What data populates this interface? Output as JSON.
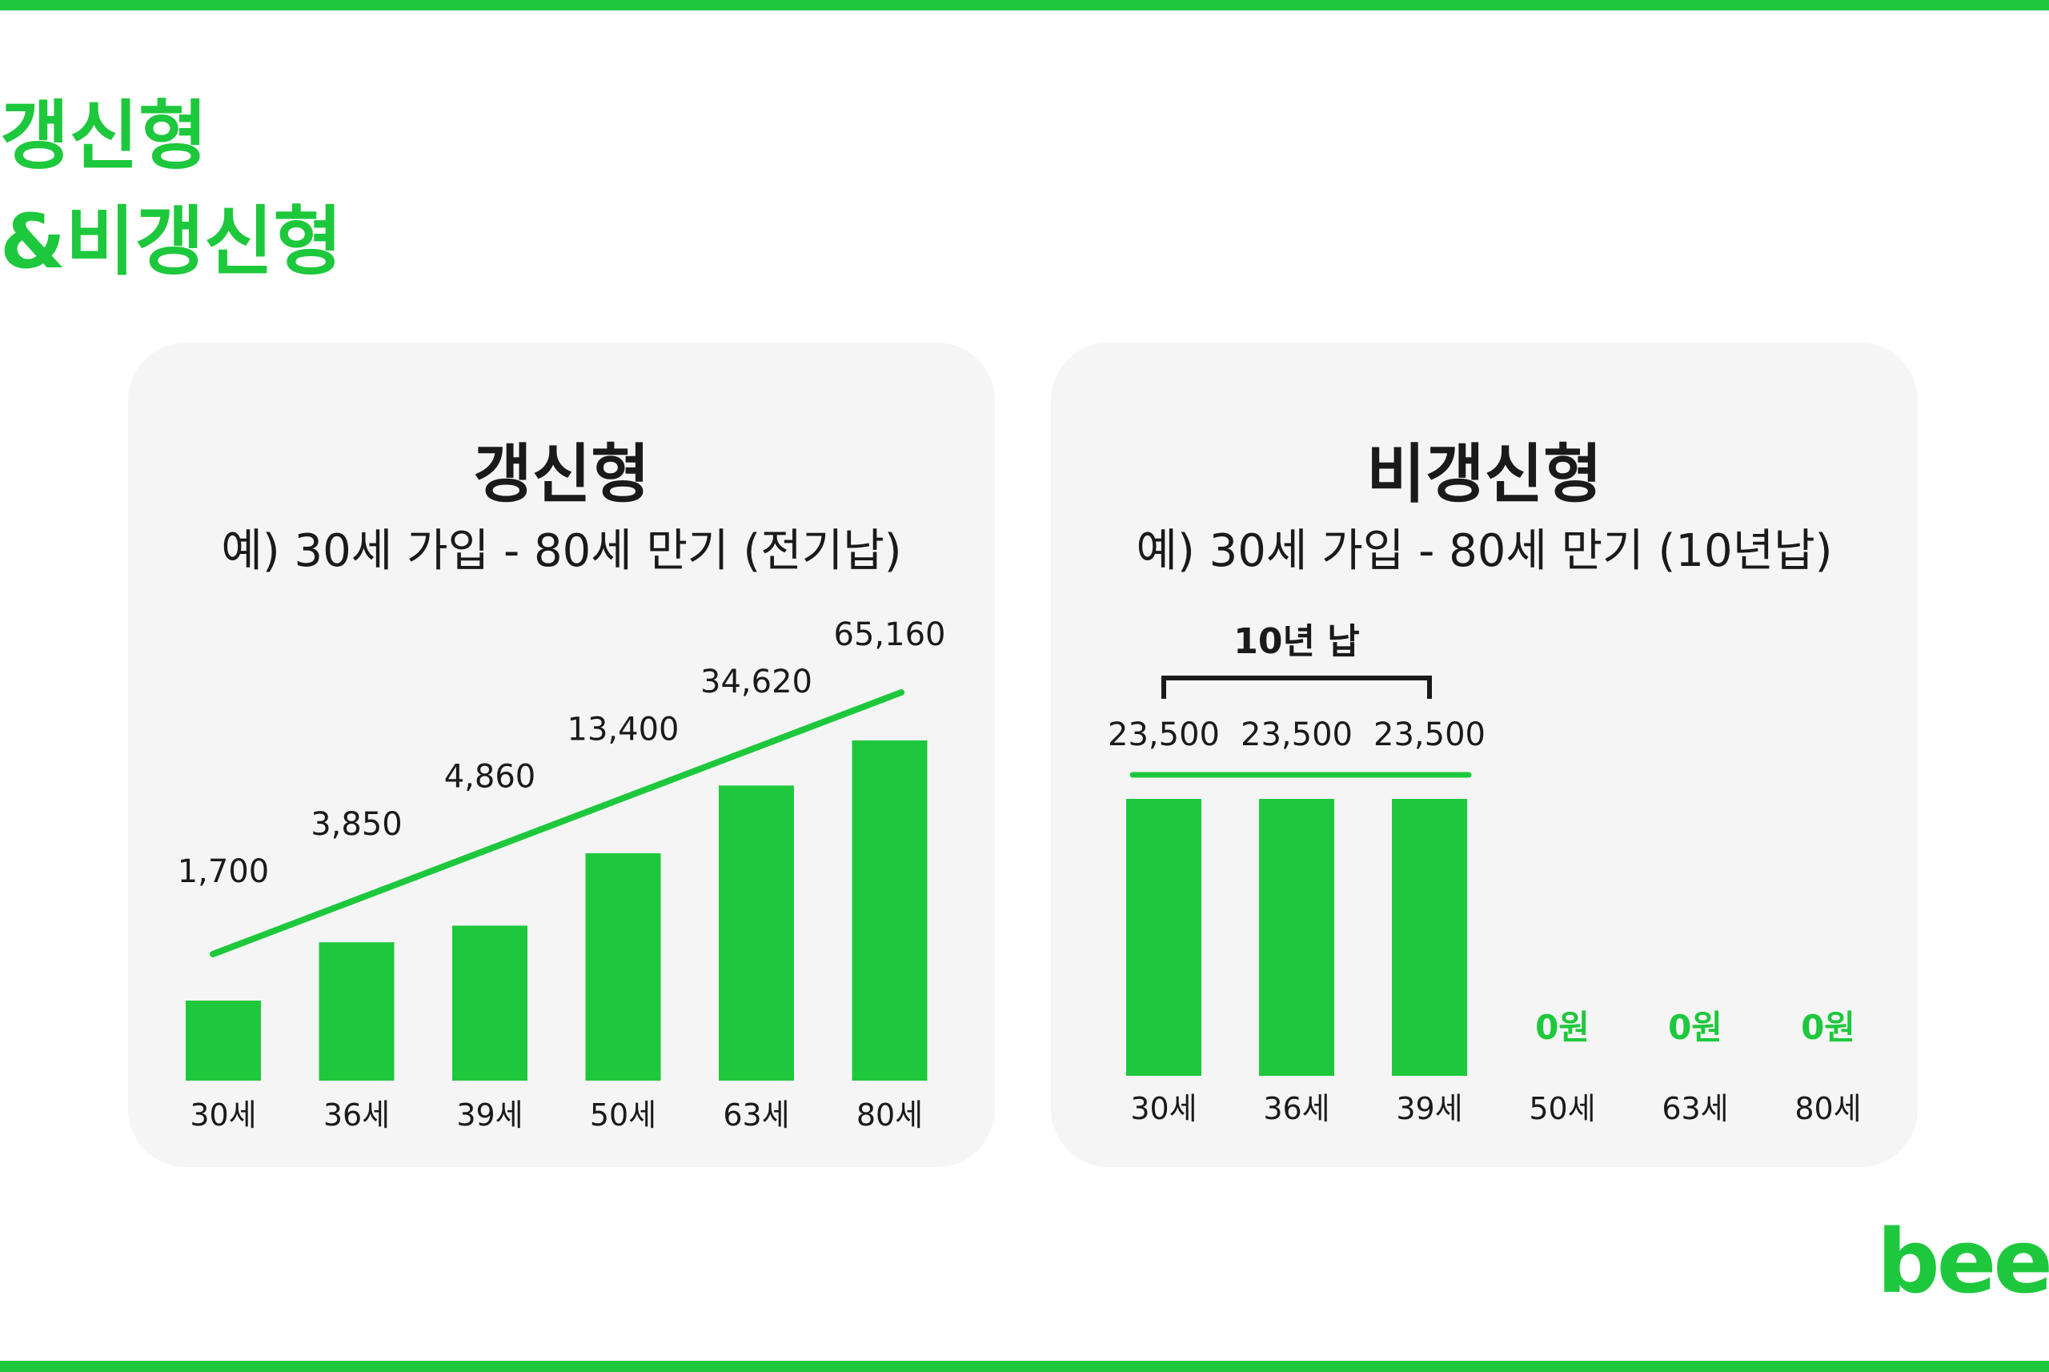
{
  "page": {
    "heading_line1": "갱신형",
    "heading_line2": "&비갱신형",
    "logo": "beed",
    "accent_color": "#1ec83c"
  },
  "chart_data": [
    {
      "type": "bar",
      "title": "갱신형",
      "subtitle": "예) 30세 가입 - 80세 만기 (전기납)",
      "categories": [
        "30세",
        "36세",
        "39세",
        "50세",
        "63세",
        "80세"
      ],
      "values": [
        1700,
        3850,
        4860,
        13400,
        34620,
        65160
      ],
      "value_labels": [
        "1,700",
        "3,850",
        "4,860",
        "13,400",
        "34,620",
        "65,160"
      ],
      "trend_line": true,
      "color": "#1ec83c"
    },
    {
      "type": "bar",
      "title": "비갱신형",
      "subtitle": "예) 30세 가입 - 80세 만기 (10년납)",
      "categories": [
        "30세",
        "36세",
        "39세",
        "50세",
        "63세",
        "80세"
      ],
      "values": [
        23500,
        23500,
        23500,
        0,
        0,
        0
      ],
      "value_labels": [
        "23,500",
        "23,500",
        "23,500",
        "0원",
        "0원",
        "0원"
      ],
      "bracket_label": "10년 납",
      "color": "#1ec83c"
    }
  ]
}
